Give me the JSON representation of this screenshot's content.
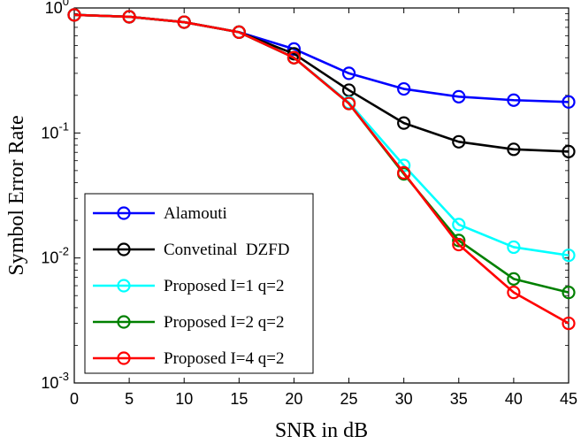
{
  "chart_data": {
    "type": "line",
    "title": "",
    "xlabel": "SNR in dB",
    "ylabel": "Symbol Error Rate",
    "xlim": [
      0,
      45
    ],
    "ylim": [
      0.001,
      1
    ],
    "yscale": "log",
    "grid": false,
    "legend_position": "bottom-left",
    "x_ticks": [
      "0",
      "5",
      "10",
      "15",
      "20",
      "25",
      "30",
      "35",
      "40",
      "45"
    ],
    "y_ticks": [
      {
        "base": "10",
        "exp": "0"
      },
      {
        "base": "10",
        "exp": "-1"
      },
      {
        "base": "10",
        "exp": "-2"
      },
      {
        "base": "10",
        "exp": "-3"
      }
    ],
    "x": [
      0,
      5,
      10,
      15,
      20,
      25,
      30,
      35,
      40,
      45
    ],
    "series": [
      {
        "name": "Alamouti",
        "color": "#0000ff",
        "values": [
          0.88,
          0.85,
          0.77,
          0.64,
          0.47,
          0.3,
          0.225,
          0.195,
          0.183,
          0.177
        ]
      },
      {
        "name": "Convetinal  DZFD",
        "color": "#000000",
        "values": [
          0.88,
          0.85,
          0.77,
          0.64,
          0.43,
          0.22,
          0.12,
          0.085,
          0.074,
          0.071
        ]
      },
      {
        "name": "Proposed I=1 q=2",
        "color": "#00ffff",
        "values": [
          0.88,
          0.85,
          0.77,
          0.64,
          0.4,
          0.175,
          0.055,
          0.0185,
          0.0122,
          0.0105
        ]
      },
      {
        "name": "Proposed I=2 q=2",
        "color": "#008000",
        "values": [
          0.88,
          0.85,
          0.77,
          0.64,
          0.4,
          0.172,
          0.047,
          0.0138,
          0.0068,
          0.0053
        ]
      },
      {
        "name": "Proposed I=4 q=2",
        "color": "#ff0000",
        "values": [
          0.88,
          0.85,
          0.77,
          0.64,
          0.4,
          0.172,
          0.048,
          0.0128,
          0.0053,
          0.003
        ]
      }
    ]
  }
}
